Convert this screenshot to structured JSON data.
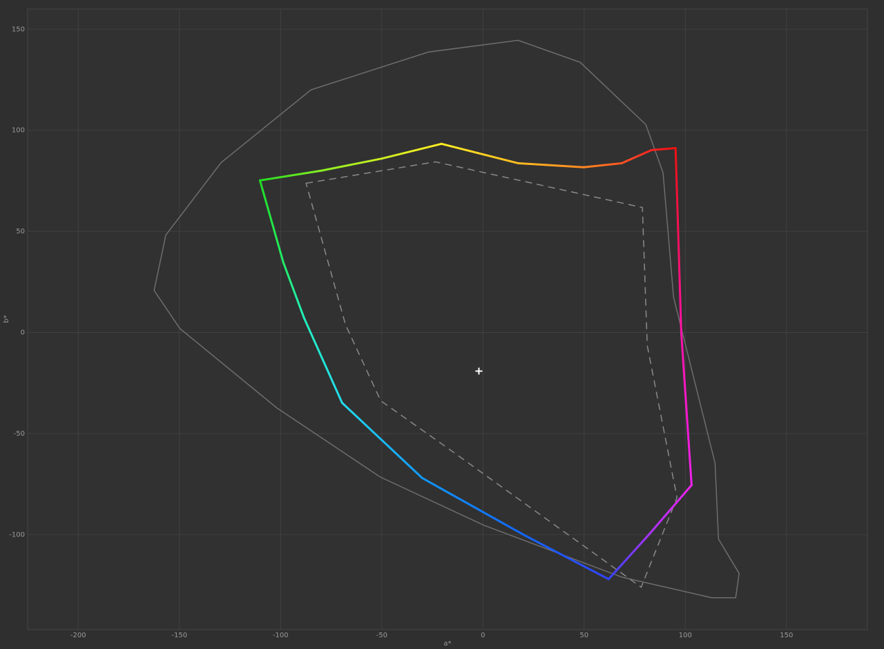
{
  "chart_data": {
    "type": "line",
    "x_label": "a*",
    "y_label": "b*",
    "xlim": [
      -225,
      190
    ],
    "ylim": [
      -147,
      160
    ],
    "xticks": [
      -200,
      -150,
      -100,
      -50,
      0,
      50,
      100,
      150
    ],
    "yticks": [
      -100,
      -50,
      0,
      50,
      100,
      150
    ],
    "grid": true,
    "series": [
      {
        "color": "#6e6e6e",
        "closed": true,
        "dash": "solid",
        "x": [
          -162.5,
          -156.7,
          -129.4,
          -85,
          -27,
          17.4,
          48.1,
          80.5,
          89,
          94.2,
          114.7,
          116.4,
          126.6,
          124.9,
          113,
          68.6,
          0.3,
          -50.9,
          -102,
          -149.8
        ],
        "values": [
          20.8,
          48.2,
          84,
          120,
          138.7,
          144.5,
          133.6,
          102.8,
          79,
          17.4,
          -64.6,
          -102.2,
          -119.2,
          -131.2,
          -131.2,
          -121,
          -95.3,
          -71.4,
          -37.2,
          2
        ]
      },
      {
        "color": "#8a8a8a",
        "closed": true,
        "dash": "dashed",
        "x": [
          -87.4,
          -23.5,
          78.8,
          81.2,
          95.9,
          78.2,
          -16.7,
          -50.5,
          -67.9
        ],
        "values": [
          73.8,
          84.4,
          61.8,
          -6.5,
          -81.7,
          -126,
          -57.7,
          -33.8,
          3.8
        ]
      },
      {
        "closed": true,
        "dash": "solid",
        "colors": [
          "#22dd22",
          "#88ee22",
          "#ccee22",
          "#ffee22",
          "#ffbb22",
          "#ff8822",
          "#ff5522",
          "#ff2222",
          "#ee1111",
          "#ff11aa",
          "#ee22ee",
          "#aa33ff",
          "#3344ff",
          "#1166ff",
          "#1199ff",
          "#22ddee",
          "#22eebb",
          "#22ee66"
        ],
        "x": [
          -110.2,
          -80,
          -50,
          -20.5,
          17.4,
          49.8,
          68.6,
          83.3,
          95.2,
          98,
          103.1,
          82,
          62.1,
          20,
          -30,
          -69.6,
          -88.4,
          -98.6
        ],
        "values": [
          75.2,
          80,
          86,
          93.3,
          83.7,
          81.7,
          83.7,
          90.2,
          91.2,
          0,
          -75.5,
          -100,
          -122,
          -100,
          -72,
          -34.8,
          7.2,
          34.5
        ]
      },
      {
        "color": "#ffffff",
        "marker": "cross",
        "x": [
          -2
        ],
        "values": [
          -19.1
        ]
      }
    ]
  }
}
